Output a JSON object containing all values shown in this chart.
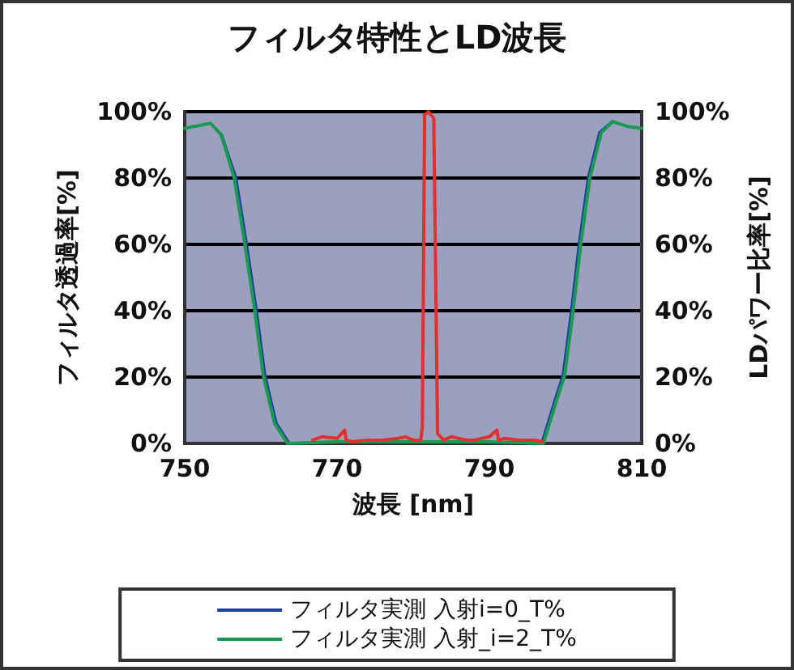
{
  "chart_data": {
    "type": "line",
    "title": "フィルタ特性とLD波長",
    "xlabel": "波長 [nm]",
    "ylabel": "フィルタ透過率[%]",
    "y2label": "LDパワー比率[%]",
    "xlim": [
      750,
      810
    ],
    "xticks": [
      750,
      770,
      790,
      810
    ],
    "ylim": [
      0,
      100
    ],
    "yticks": [
      {
        "value": 0,
        "label": "0%"
      },
      {
        "value": 20,
        "label": "20%"
      },
      {
        "value": 40,
        "label": "40%"
      },
      {
        "value": 60,
        "label": "60%"
      },
      {
        "value": 80,
        "label": "80%"
      },
      {
        "value": 100,
        "label": "100%"
      }
    ],
    "y2lim": [
      0,
      100
    ],
    "y2ticks": [
      {
        "value": 0,
        "label": "0%"
      },
      {
        "value": 20,
        "label": "20%"
      },
      {
        "value": 40,
        "label": "40%"
      },
      {
        "value": 60,
        "label": "60%"
      },
      {
        "value": 80,
        "label": "80%"
      },
      {
        "value": 100,
        "label": "100%"
      }
    ],
    "grid": "y",
    "legend": "bottom",
    "marker": "none",
    "line_style": "solid",
    "series": [
      {
        "name": "フィルタ実測 入射i=0_T%",
        "color": "#1f3fa0",
        "x": [
          754.8,
          756.7,
          758.1,
          759.4,
          760.5,
          762,
          763.7,
          780,
          796.9,
          798.6,
          799.7,
          800.8,
          801.8,
          803,
          804.5,
          806.2
        ],
        "values": [
          93,
          80,
          60,
          40,
          20.6,
          6,
          0,
          null,
          0,
          12.7,
          20.6,
          40,
          60,
          80,
          93.7,
          97
        ]
      },
      {
        "name": "フィルタ実測 入射_i=2_T%",
        "color": "#1a9a50",
        "x": [
          750,
          753.4,
          754.8,
          756.5,
          757.9,
          759.2,
          760.3,
          761.8,
          763.5,
          770,
          780,
          790,
          797.1,
          798.8,
          799.9,
          801,
          802,
          803.2,
          804.7,
          806.2,
          808.2,
          810
        ],
        "values": [
          95,
          96.5,
          93,
          80,
          60,
          40,
          20.6,
          6,
          0,
          0.5,
          0.5,
          0.5,
          0,
          12.7,
          20.6,
          40,
          60,
          80,
          93.7,
          97,
          95.5,
          95
        ]
      },
      {
        "color": "#e03030",
        "axis": "y2",
        "x": [
          766.8,
          768,
          770,
          771,
          771.2,
          772,
          774,
          776,
          778,
          779,
          780,
          781,
          781.2,
          781.5,
          782,
          782.7,
          783.2,
          784,
          785,
          787,
          788,
          790,
          791,
          791.2,
          792,
          794,
          796,
          797
        ],
        "values": [
          1,
          2,
          1.5,
          4,
          1,
          0.5,
          1,
          1,
          1.5,
          2,
          1,
          1,
          5,
          99,
          100,
          98,
          3,
          1,
          2,
          1,
          1,
          2,
          4,
          1,
          1.5,
          1,
          1,
          0.5
        ]
      }
    ]
  }
}
